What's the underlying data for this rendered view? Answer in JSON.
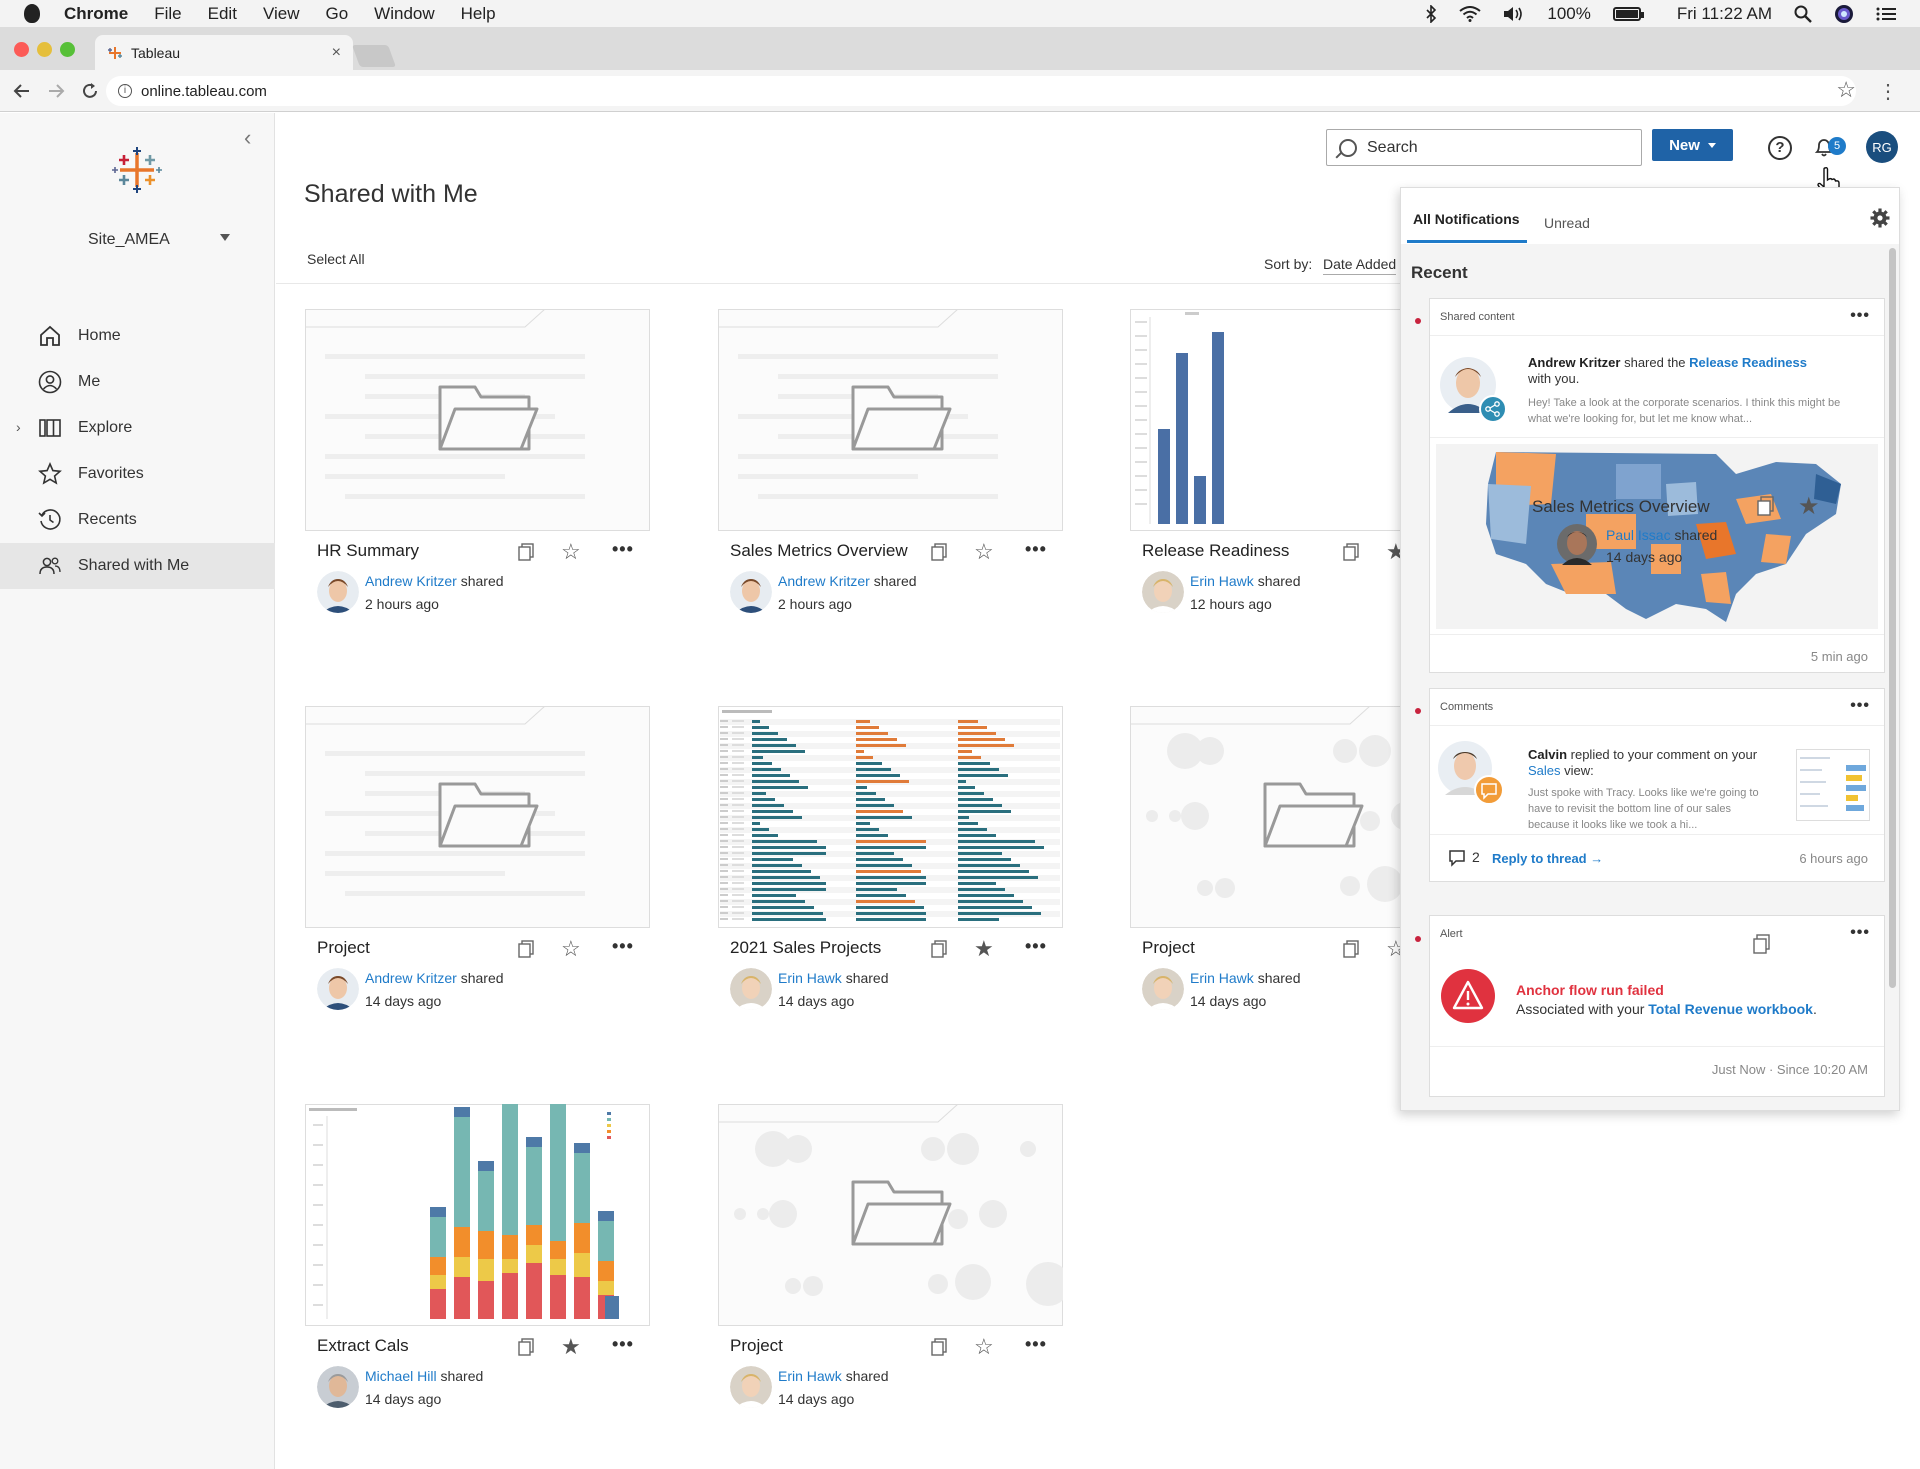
{
  "mac_menu": {
    "app": "Chrome",
    "items": [
      "File",
      "Edit",
      "View",
      "Go",
      "Window",
      "Help"
    ],
    "battery": "100%",
    "clock": "Fri 11:22 AM"
  },
  "browser": {
    "tab_title": "Tableau",
    "tab_close": "×",
    "url": "online.tableau.com"
  },
  "sidebar": {
    "site": "Site_AMEA",
    "items": [
      {
        "label": "Home",
        "icon": "home-icon"
      },
      {
        "label": "Me",
        "icon": "user-icon"
      },
      {
        "label": "Explore",
        "icon": "explore-icon"
      },
      {
        "label": "Favorites",
        "icon": "star-icon"
      },
      {
        "label": "Recents",
        "icon": "clock-icon"
      },
      {
        "label": "Shared with Me",
        "icon": "people-icon"
      }
    ]
  },
  "header": {
    "title": "Shared with Me",
    "select_all": "Select All",
    "sort_label": "Sort by:",
    "sort_value": "Date Added",
    "search_placeholder": "Search",
    "new_label": "New",
    "notification_count": "5",
    "user_initials": "RG"
  },
  "cards": [
    {
      "title": "HR Summary",
      "owner": "Andrew Kritzer",
      "verb": "shared",
      "time": "2 hours ago",
      "favorited": false,
      "thumb": "folder"
    },
    {
      "title": "Sales Metrics Overview",
      "owner": "Andrew Kritzer",
      "verb": "shared",
      "time": "2 hours ago",
      "favorited": false,
      "thumb": "folder"
    },
    {
      "title": "Release Readiness",
      "owner": "Erin Hawk",
      "verb": "shared",
      "time": "12 hours ago",
      "favorited": true,
      "thumb": "bar-chart"
    },
    {
      "title": "Project",
      "owner": "Andrew Kritzer",
      "verb": "shared",
      "time": "14 days ago",
      "favorited": false,
      "thumb": "folder"
    },
    {
      "title": "2021 Sales Projects",
      "owner": "Erin Hawk",
      "verb": "shared",
      "time": "14 days ago",
      "favorited": true,
      "thumb": "hbar-chart"
    },
    {
      "title": "Project",
      "owner": "Erin Hawk",
      "verb": "shared",
      "time": "14 days ago",
      "favorited": false,
      "thumb": "bubble-folder"
    },
    {
      "title": "Extract Cals",
      "owner": "Michael Hill",
      "verb": "shared",
      "time": "14 days ago",
      "favorited": true,
      "thumb": "stacked-chart"
    },
    {
      "title": "Project",
      "owner": "Erin Hawk",
      "verb": "shared",
      "time": "14 days ago",
      "favorited": false,
      "thumb": "bubble-folder"
    }
  ],
  "notifications": {
    "tabs": [
      "All Notifications",
      "Unread"
    ],
    "section": "Recent",
    "items": [
      {
        "category": "Shared content",
        "actor": "Andrew Kritzer",
        "action": "shared the",
        "object": "Release Readiness",
        "suffix": "with you.",
        "message": "Hey! Take a look at the corporate scenarios. I think this might be what we're looking for, but let me know what...",
        "time": "5 min ago",
        "overlay_title": "Sales Metrics Overview",
        "overlay_owner": "Paul Issac",
        "overlay_verb": "shared",
        "overlay_time": "14 days ago"
      },
      {
        "category": "Comments",
        "actor": "Calvin",
        "action": "replied to your comment on your",
        "object": "Sales",
        "suffix": "view:",
        "message": "Just spoke with Tracy. Looks like we're going to have to revisit the bottom line of our sales because it looks like we took a hi...",
        "reply_count": "2",
        "reply_label": "Reply to thread →",
        "time": "6 hours ago"
      },
      {
        "category": "Alert",
        "title": "Anchor flow run failed",
        "line_prefix": "Associated with your",
        "object": "Total Revenue workbook",
        "line_suffix": ".",
        "time": "Just Now · Since 10:20 AM"
      }
    ]
  },
  "colors": {
    "accent": "#1f63a7",
    "link": "#1f7bc9",
    "alert": "#e0323f",
    "bar_blue": "#4a6fa5",
    "bar_orange": "#e07b39",
    "bar_teal": "#2a6f7e"
  }
}
